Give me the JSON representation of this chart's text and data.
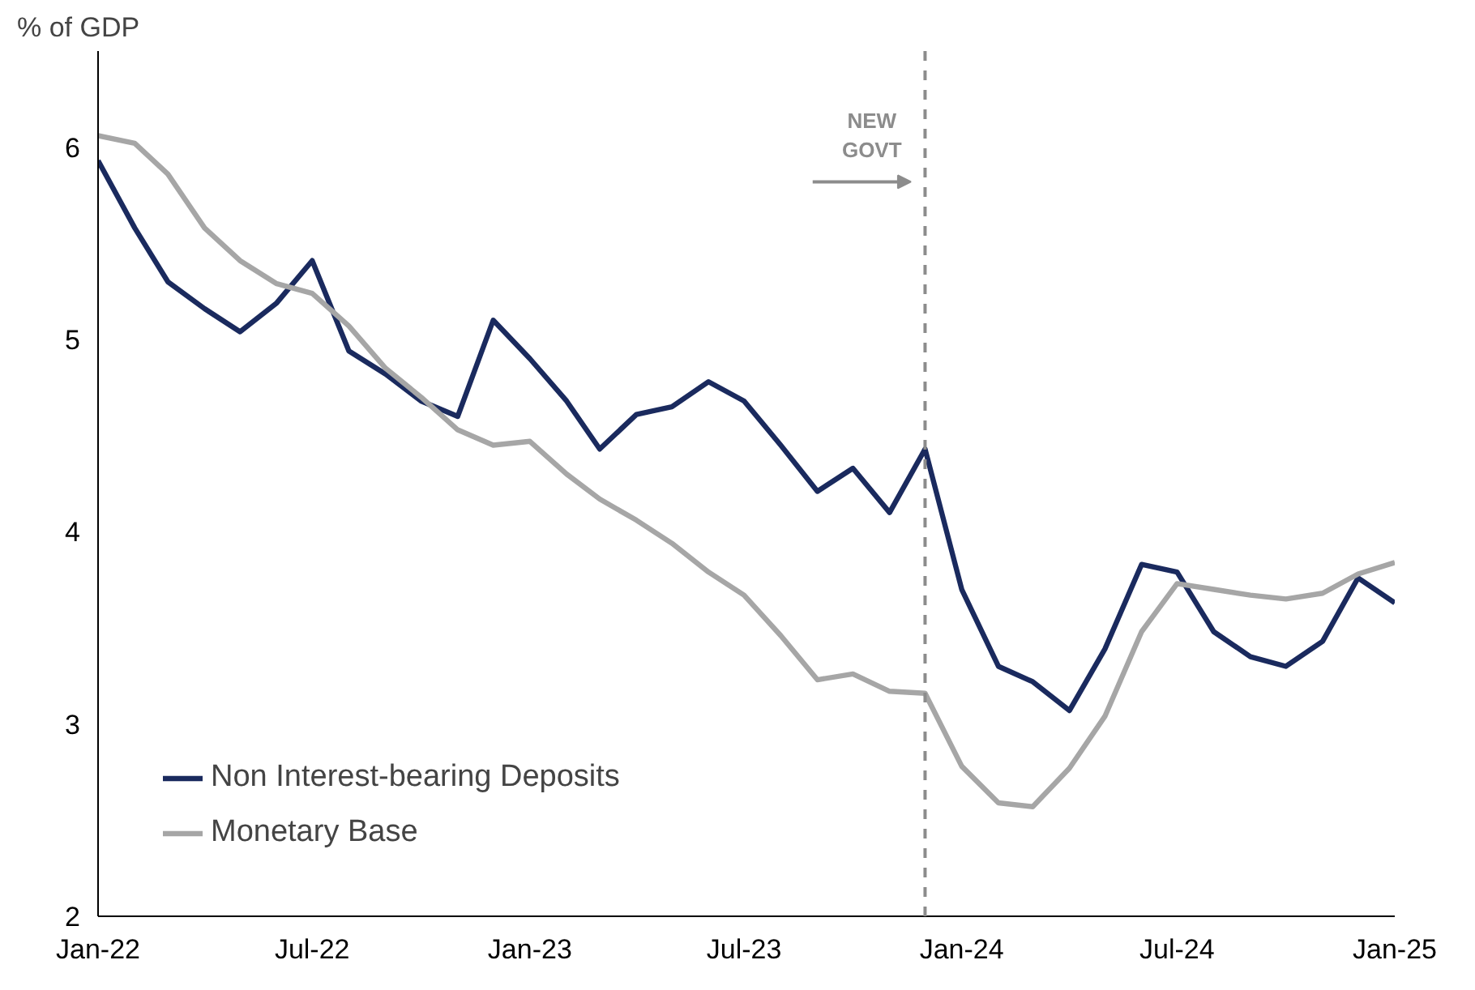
{
  "chart_data": {
    "type": "line",
    "ylabel": "% of GDP",
    "x": [
      "2022-01",
      "2022-02",
      "2022-03",
      "2022-04",
      "2022-05",
      "2022-06",
      "2022-07",
      "2022-08",
      "2022-09",
      "2022-10",
      "2022-11",
      "2022-12",
      "2023-01",
      "2023-02",
      "2023-03",
      "2023-04",
      "2023-05",
      "2023-06",
      "2023-07",
      "2023-08",
      "2023-09",
      "2023-10",
      "2023-11",
      "2023-12",
      "2024-01",
      "2024-02",
      "2024-03",
      "2024-04",
      "2024-05",
      "2024-06",
      "2024-07",
      "2024-08",
      "2024-09",
      "2024-10",
      "2024-11",
      "2024-12",
      "2025-01"
    ],
    "series": [
      {
        "name": "Non Interest-bearing Deposits",
        "color": "#1a2a5e",
        "values": [
          5.93,
          5.58,
          5.3,
          5.16,
          5.04,
          5.19,
          5.41,
          4.94,
          4.82,
          4.68,
          4.6,
          5.1,
          4.9,
          4.68,
          4.43,
          4.61,
          4.65,
          4.78,
          4.68,
          4.45,
          4.21,
          4.33,
          4.1,
          4.43,
          3.7,
          3.3,
          3.22,
          3.07,
          3.39,
          3.83,
          3.79,
          3.48,
          3.35,
          3.3,
          3.43,
          3.76,
          3.63
        ]
      },
      {
        "name": "Monetary Base",
        "color": "#a6a6a6",
        "values": [
          6.06,
          6.02,
          5.86,
          5.58,
          5.41,
          5.29,
          5.24,
          5.07,
          4.85,
          4.7,
          4.53,
          4.45,
          4.47,
          4.3,
          4.17,
          4.06,
          3.94,
          3.79,
          3.67,
          3.46,
          3.23,
          3.26,
          3.17,
          3.16,
          2.78,
          2.59,
          2.57,
          2.77,
          3.04,
          3.48,
          3.73,
          3.7,
          3.67,
          3.65,
          3.68,
          3.78,
          3.84
        ]
      }
    ],
    "xlim": [
      "2022-01",
      "2025-01"
    ],
    "xticks": [
      {
        "value": "2022-01",
        "label": "Jan-22"
      },
      {
        "value": "2022-07",
        "label": "Jul-22"
      },
      {
        "value": "2023-01",
        "label": "Jan-23"
      },
      {
        "value": "2023-07",
        "label": "Jul-23"
      },
      {
        "value": "2024-01",
        "label": "Jan-24"
      },
      {
        "value": "2024-07",
        "label": "Jul-24"
      },
      {
        "value": "2025-01",
        "label": "Jan-25"
      }
    ],
    "ylim": [
      2,
      6.5
    ],
    "yticks": [
      2,
      3,
      4,
      5,
      6
    ],
    "ref_lines": [
      {
        "axis": "x",
        "value": "2023-12",
        "label": "NEW\nGOVT",
        "color": "#8c8c8c",
        "line_style": "dashed"
      }
    ],
    "legend": "bottom left",
    "grid": false,
    "line_style": "solid",
    "marker": "none"
  }
}
